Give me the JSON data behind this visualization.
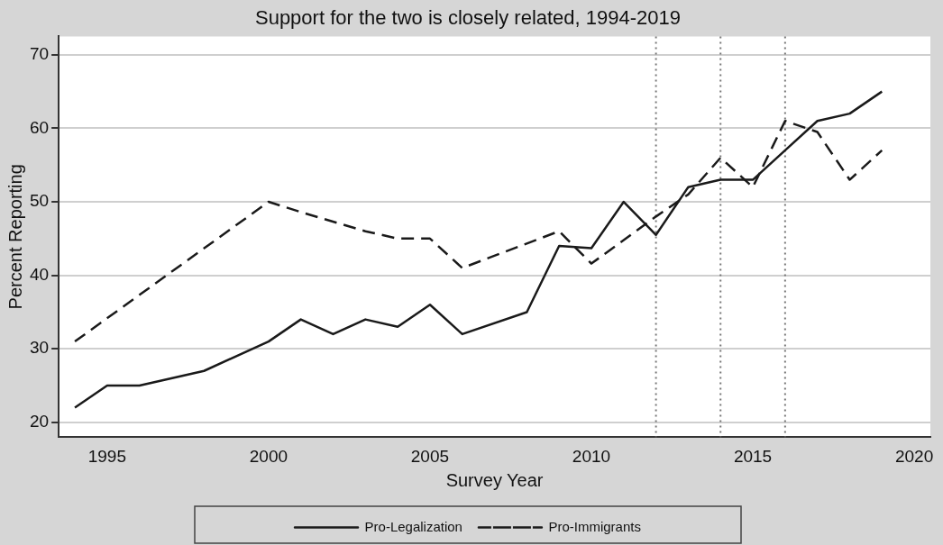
{
  "chart_data": {
    "type": "line",
    "title": "Support for the two is closely related, 1994-2019",
    "xlabel": "Survey Year",
    "ylabel": "Percent Reporting",
    "xlim": [
      1993.5,
      2020.5
    ],
    "xticks": [
      1995,
      2000,
      2005,
      2010,
      2015,
      2020
    ],
    "ylim": [
      18,
      72.5
    ],
    "yticks": [
      20,
      30,
      40,
      50,
      60,
      70
    ],
    "grid": "y",
    "legend": "bottom",
    "marker": "none",
    "series": [
      {
        "name": "Pro-Legalization",
        "color": "#1a1a1a",
        "line_style": "solid",
        "x": [
          1994,
          1995,
          1996,
          1998,
          2000,
          2001,
          2002,
          2003,
          2004,
          2005,
          2006,
          2008,
          2009,
          2010,
          2011,
          2012,
          2013,
          2014,
          2015,
          2016,
          2017,
          2018,
          2019
        ],
        "values": [
          22,
          25,
          25,
          27,
          31,
          34,
          32,
          34,
          33,
          36,
          32,
          35,
          44,
          43.7,
          50,
          45.5,
          52,
          53,
          53,
          57,
          61,
          62,
          65
        ]
      },
      {
        "name": "Pro-Immigrants",
        "color": "#1a1a1a",
        "line_style": "dashed",
        "x": [
          1994,
          2000,
          2001,
          2003,
          2004,
          2005,
          2006,
          2009,
          2010,
          2012,
          2013,
          2014,
          2015,
          2016,
          2017,
          2018,
          2019
        ],
        "values": [
          31,
          50,
          48.6,
          46,
          45,
          45,
          41,
          46,
          41.6,
          48,
          51,
          56,
          52,
          61,
          59.5,
          53,
          57
        ]
      }
    ],
    "ref_lines": [
      {
        "axis": "x",
        "value": 2012,
        "color": "#777777",
        "line_style": "dotted"
      },
      {
        "axis": "x",
        "value": 2014,
        "color": "#777777",
        "line_style": "dotted"
      },
      {
        "axis": "x",
        "value": 2016,
        "color": "#777777",
        "line_style": "dotted"
      }
    ]
  }
}
